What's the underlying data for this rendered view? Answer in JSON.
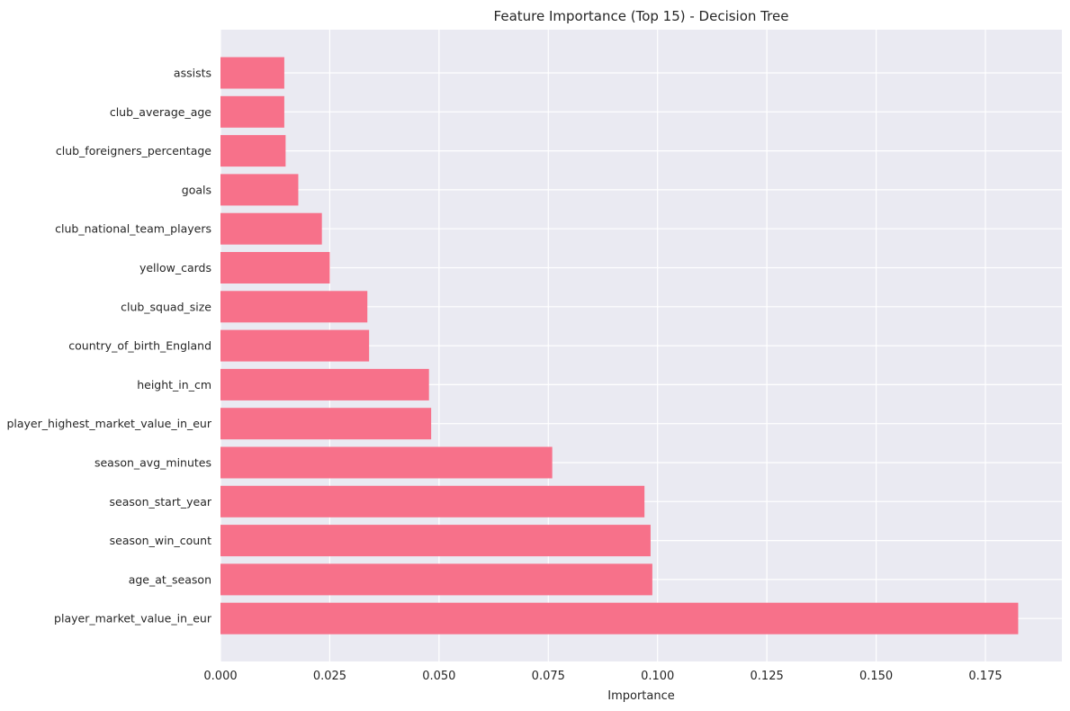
{
  "chart_data": {
    "type": "bar",
    "orientation": "horizontal",
    "title": "Feature Importance (Top 15) - Decision Tree",
    "xlabel": "Importance",
    "ylabel": "",
    "xlim": [
      0,
      0.1925
    ],
    "xticks": [
      0.0,
      0.025,
      0.05,
      0.075,
      0.1,
      0.125,
      0.15,
      0.175
    ],
    "xtick_labels": [
      "0.000",
      "0.025",
      "0.050",
      "0.075",
      "0.100",
      "0.125",
      "0.150",
      "0.175"
    ],
    "grid": true,
    "bar_color": "#f7718a",
    "background_color": "#eaeaf2",
    "categories": [
      "assists",
      "club_average_age",
      "club_foreigners_percentage",
      "goals",
      "club_national_team_players",
      "yellow_cards",
      "club_squad_size",
      "country_of_birth_England",
      "height_in_cm",
      "player_highest_market_value_in_eur",
      "season_avg_minutes",
      "season_start_year",
      "season_win_count",
      "age_at_season",
      "player_market_value_in_eur"
    ],
    "values": [
      0.0146,
      0.0146,
      0.0149,
      0.0178,
      0.0232,
      0.025,
      0.0336,
      0.034,
      0.0477,
      0.0482,
      0.0759,
      0.097,
      0.0984,
      0.0988,
      0.1825
    ]
  }
}
